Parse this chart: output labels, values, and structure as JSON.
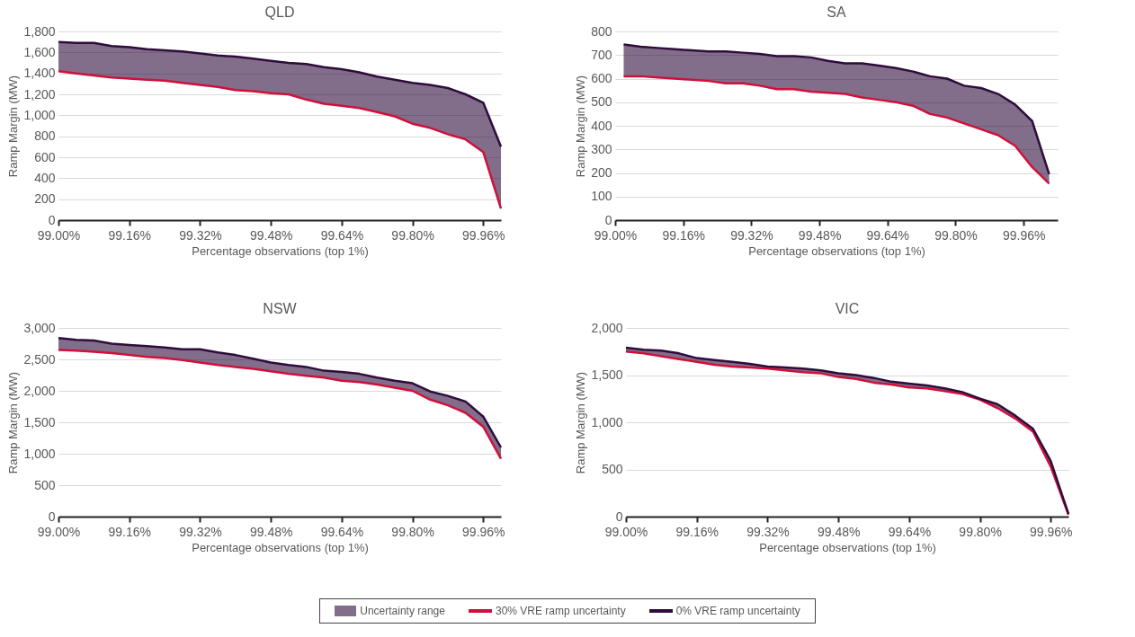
{
  "chart_data": [
    {
      "type": "line",
      "title": "QLD",
      "xlabel": "Percentage observations (top 1%)",
      "ylabel": "Ramp Margin (MW)",
      "annotations": [
        "Uncertainty range"
      ],
      "x": [
        99.0,
        99.04,
        99.08,
        99.12,
        99.16,
        99.2,
        99.24,
        99.28,
        99.32,
        99.36,
        99.4,
        99.44,
        99.48,
        99.52,
        99.56,
        99.6,
        99.64,
        99.68,
        99.72,
        99.76,
        99.8,
        99.84,
        99.88,
        99.92,
        99.96,
        100.0
      ],
      "series": [
        {
          "name": "30% VRE ramp uncertainty",
          "color": "#d0103a",
          "values": [
            1420,
            1400,
            1380,
            1360,
            1350,
            1340,
            1330,
            1310,
            1290,
            1270,
            1240,
            1230,
            1210,
            1200,
            1150,
            1110,
            1090,
            1070,
            1030,
            990,
            920,
            880,
            820,
            770,
            650,
            110
          ]
        },
        {
          "name": "0% VRE ramp uncertainty",
          "color": "#2e0d3c",
          "values": [
            1700,
            1690,
            1690,
            1660,
            1650,
            1630,
            1620,
            1610,
            1590,
            1570,
            1560,
            1540,
            1520,
            1500,
            1490,
            1460,
            1440,
            1410,
            1370,
            1340,
            1310,
            1290,
            1260,
            1200,
            1120,
            700
          ],
          "lower": [
            1420,
            1400,
            1380,
            1360,
            1350,
            1340,
            1330,
            1310,
            1290,
            1270,
            1240,
            1230,
            1210,
            1200,
            1150,
            1110,
            1090,
            1070,
            1030,
            990,
            920,
            880,
            820,
            770,
            650,
            110
          ],
          "upper": [
            1700,
            1690,
            1690,
            1660,
            1650,
            1630,
            1620,
            1610,
            1590,
            1570,
            1560,
            1540,
            1520,
            1500,
            1490,
            1460,
            1440,
            1410,
            1370,
            1340,
            1310,
            1290,
            1260,
            1200,
            1120,
            700
          ]
        }
      ],
      "xlim": [
        99.0,
        100.0
      ],
      "xticks": [
        {
          "value": 99.0,
          "label": "99.00%"
        },
        {
          "value": 99.16,
          "label": "99.16%"
        },
        {
          "value": 99.32,
          "label": "99.32%"
        },
        {
          "value": 99.48,
          "label": "99.48%"
        },
        {
          "value": 99.64,
          "label": "99.64%"
        },
        {
          "value": 99.8,
          "label": "99.80%"
        },
        {
          "value": 99.96,
          "label": "99.96%"
        }
      ],
      "ylim": [
        0,
        1800
      ],
      "yticks": [
        0,
        200,
        400,
        600,
        800,
        {
          "value": 1000,
          "label": "1,000"
        },
        {
          "value": 1200,
          "label": "1,200"
        },
        {
          "value": 1400,
          "label": "1,400"
        },
        {
          "value": 1600,
          "label": "1,600"
        },
        {
          "value": 1800,
          "label": "1,800"
        }
      ],
      "grid": "y",
      "legend": "bottom"
    },
    {
      "type": "line",
      "title": "SA",
      "xlabel": "Percentage observations (top 1%)",
      "ylabel": "Ramp Margin (MW)",
      "x": [
        99.02,
        99.06,
        99.1,
        99.14,
        99.18,
        99.22,
        99.26,
        99.3,
        99.34,
        99.38,
        99.42,
        99.46,
        99.5,
        99.54,
        99.58,
        99.62,
        99.66,
        99.7,
        99.74,
        99.78,
        99.82,
        99.86,
        99.9,
        99.94,
        99.98,
        100.02
      ],
      "series": [
        {
          "name": "30% VRE ramp uncertainty",
          "color": "#d0103a",
          "values": [
            610,
            610,
            605,
            600,
            595,
            590,
            580,
            580,
            570,
            555,
            555,
            545,
            540,
            535,
            520,
            510,
            500,
            485,
            450,
            435,
            410,
            385,
            360,
            315,
            225,
            155
          ]
        },
        {
          "name": "0% VRE ramp uncertainty",
          "color": "#2e0d3c",
          "values": [
            745,
            735,
            730,
            725,
            720,
            715,
            715,
            710,
            705,
            695,
            695,
            690,
            675,
            665,
            665,
            655,
            645,
            630,
            610,
            600,
            570,
            560,
            535,
            490,
            420,
            195
          ],
          "lower": [
            610,
            610,
            605,
            600,
            595,
            590,
            580,
            580,
            570,
            555,
            555,
            545,
            540,
            535,
            520,
            510,
            500,
            485,
            450,
            435,
            410,
            385,
            360,
            315,
            225,
            155
          ],
          "upper": [
            745,
            735,
            730,
            725,
            720,
            715,
            715,
            710,
            705,
            695,
            695,
            690,
            675,
            665,
            665,
            655,
            645,
            630,
            610,
            600,
            570,
            560,
            535,
            490,
            420,
            195
          ]
        }
      ],
      "xlim": [
        99.0,
        100.04
      ],
      "xticks": [
        {
          "value": 99.0,
          "label": "99.00%"
        },
        {
          "value": 99.16,
          "label": "99.16%"
        },
        {
          "value": 99.32,
          "label": "99.32%"
        },
        {
          "value": 99.48,
          "label": "99.48%"
        },
        {
          "value": 99.64,
          "label": "99.64%"
        },
        {
          "value": 99.8,
          "label": "99.80%"
        },
        {
          "value": 99.96,
          "label": "99.96%"
        }
      ],
      "ylim": [
        0,
        800
      ],
      "yticks": [
        0,
        100,
        200,
        300,
        400,
        500,
        600,
        700,
        800
      ],
      "grid": "y",
      "legend": "bottom"
    },
    {
      "type": "line",
      "title": "NSW",
      "xlabel": "Percentage observations (top 1%)",
      "ylabel": "Ramp Margin (MW)",
      "x": [
        99.0,
        99.04,
        99.08,
        99.12,
        99.16,
        99.2,
        99.24,
        99.28,
        99.32,
        99.36,
        99.4,
        99.44,
        99.48,
        99.52,
        99.56,
        99.6,
        99.64,
        99.68,
        99.72,
        99.76,
        99.8,
        99.84,
        99.88,
        99.92,
        99.96,
        100.0
      ],
      "series": [
        {
          "name": "30% VRE ramp uncertainty",
          "color": "#d0103a",
          "values": [
            2650,
            2640,
            2620,
            2600,
            2570,
            2540,
            2520,
            2490,
            2450,
            2410,
            2380,
            2350,
            2310,
            2270,
            2240,
            2210,
            2160,
            2140,
            2100,
            2050,
            2000,
            1860,
            1770,
            1650,
            1430,
            920
          ]
        },
        {
          "name": "0% VRE ramp uncertainty",
          "color": "#2e0d3c",
          "values": [
            2840,
            2810,
            2800,
            2750,
            2730,
            2710,
            2690,
            2660,
            2660,
            2610,
            2570,
            2510,
            2450,
            2410,
            2380,
            2320,
            2300,
            2270,
            2210,
            2160,
            2120,
            1990,
            1920,
            1830,
            1590,
            1100
          ],
          "lower": [
            2650,
            2640,
            2620,
            2600,
            2570,
            2540,
            2520,
            2490,
            2450,
            2410,
            2380,
            2350,
            2310,
            2270,
            2240,
            2210,
            2160,
            2140,
            2100,
            2050,
            2000,
            1860,
            1770,
            1650,
            1430,
            920
          ],
          "upper": [
            2840,
            2810,
            2800,
            2750,
            2730,
            2710,
            2690,
            2660,
            2660,
            2610,
            2570,
            2510,
            2450,
            2410,
            2380,
            2320,
            2300,
            2270,
            2210,
            2160,
            2120,
            1990,
            1920,
            1830,
            1590,
            1100
          ]
        }
      ],
      "xlim": [
        99.0,
        100.0
      ],
      "xticks": [
        {
          "value": 99.0,
          "label": "99.00%"
        },
        {
          "value": 99.16,
          "label": "99.16%"
        },
        {
          "value": 99.32,
          "label": "99.32%"
        },
        {
          "value": 99.48,
          "label": "99.48%"
        },
        {
          "value": 99.64,
          "label": "99.64%"
        },
        {
          "value": 99.8,
          "label": "99.80%"
        },
        {
          "value": 99.96,
          "label": "99.96%"
        }
      ],
      "ylim": [
        0,
        3000
      ],
      "yticks": [
        0,
        500,
        {
          "value": 1000,
          "label": "1,000"
        },
        {
          "value": 1500,
          "label": "1,500"
        },
        {
          "value": 2000,
          "label": "2,000"
        },
        {
          "value": 2500,
          "label": "2,500"
        },
        {
          "value": 3000,
          "label": "3,000"
        }
      ],
      "grid": "y",
      "legend": "bottom"
    },
    {
      "type": "line",
      "title": "VIC",
      "xlabel": "Percentage observations (top 1%)",
      "ylabel": "Ramp Margin (MW)",
      "x": [
        99.0,
        99.04,
        99.08,
        99.12,
        99.16,
        99.2,
        99.24,
        99.28,
        99.32,
        99.36,
        99.4,
        99.44,
        99.48,
        99.52,
        99.56,
        99.6,
        99.64,
        99.68,
        99.72,
        99.76,
        99.8,
        99.84,
        99.88,
        99.92,
        99.96,
        100.0
      ],
      "series": [
        {
          "name": "30% VRE ramp uncertainty",
          "color": "#d0103a",
          "values": [
            1750,
            1730,
            1700,
            1670,
            1640,
            1610,
            1590,
            1580,
            1570,
            1550,
            1530,
            1520,
            1480,
            1460,
            1420,
            1400,
            1370,
            1360,
            1330,
            1300,
            1240,
            1150,
            1040,
            900,
            530,
            20
          ]
        },
        {
          "name": "0% VRE ramp uncertainty",
          "color": "#2e0d3c",
          "values": [
            1790,
            1770,
            1760,
            1730,
            1680,
            1660,
            1640,
            1620,
            1590,
            1580,
            1570,
            1550,
            1520,
            1500,
            1470,
            1430,
            1410,
            1390,
            1360,
            1320,
            1250,
            1190,
            1070,
            930,
            590,
            30
          ],
          "lower": [
            1750,
            1730,
            1700,
            1670,
            1640,
            1610,
            1590,
            1580,
            1570,
            1550,
            1530,
            1520,
            1480,
            1460,
            1420,
            1400,
            1370,
            1360,
            1330,
            1300,
            1240,
            1150,
            1040,
            900,
            530,
            20
          ],
          "upper": [
            1790,
            1770,
            1760,
            1730,
            1680,
            1660,
            1640,
            1620,
            1590,
            1580,
            1570,
            1550,
            1520,
            1500,
            1470,
            1430,
            1410,
            1390,
            1360,
            1320,
            1250,
            1190,
            1070,
            930,
            590,
            30
          ]
        }
      ],
      "xlim": [
        99.0,
        100.0
      ],
      "xticks": [
        {
          "value": 99.0,
          "label": "99.00%"
        },
        {
          "value": 99.16,
          "label": "99.16%"
        },
        {
          "value": 99.32,
          "label": "99.32%"
        },
        {
          "value": 99.48,
          "label": "99.48%"
        },
        {
          "value": 99.64,
          "label": "99.64%"
        },
        {
          "value": 99.8,
          "label": "99.80%"
        },
        {
          "value": 99.96,
          "label": "99.96%"
        }
      ],
      "ylim": [
        0,
        2000
      ],
      "yticks": [
        0,
        500,
        {
          "value": 1000,
          "label": "1,000"
        },
        {
          "value": 1500,
          "label": "1,500"
        },
        {
          "value": 2000,
          "label": "2,000"
        }
      ],
      "grid": "y",
      "legend": "bottom"
    }
  ]
}
